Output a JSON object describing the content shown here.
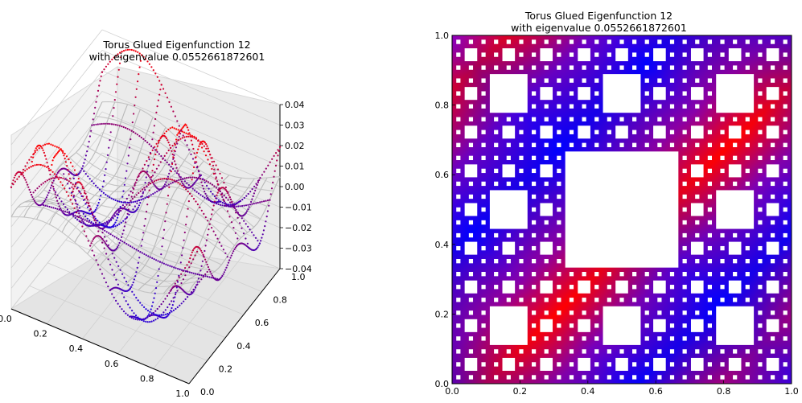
{
  "chart_data": [
    {
      "type": "scatter3d",
      "title_line1": "Torus Glued Eigenfunction 12",
      "title_line2": "with eigenvalue 0.0552661872601",
      "x_ticks": [
        "0.0",
        "0.2",
        "0.4",
        "0.6",
        "0.8",
        "1.0"
      ],
      "y_ticks": [
        "0.0",
        "0.2",
        "0.4",
        "0.6",
        "0.8",
        "1.0"
      ],
      "z_ticks": [
        "0.04",
        "0.03",
        "0.02",
        "0.01",
        "0.00",
        "−0.01",
        "−0.02",
        "−0.03",
        "−0.04"
      ],
      "xlim": [
        0,
        1
      ],
      "ylim": [
        0,
        1
      ],
      "zlim": [
        -0.04,
        0.04
      ],
      "colormap": [
        "#0000ff",
        "#ff0000"
      ]
    },
    {
      "type": "heatmap",
      "title_line1": "Torus Glued Eigenfunction 12",
      "title_line2": "with eigenvalue 0.0552661872601",
      "x_ticks": [
        "0.0",
        "0.2",
        "0.4",
        "0.6",
        "0.8",
        "1.0"
      ],
      "y_ticks": [
        "1.0",
        "0.8",
        "0.6",
        "0.4",
        "0.2",
        "0.0"
      ],
      "xlim": [
        0,
        1
      ],
      "ylim": [
        0,
        1
      ],
      "domain": "Sierpinski carpet",
      "colormap": [
        "#0000ff",
        "#ff0000"
      ]
    }
  ]
}
